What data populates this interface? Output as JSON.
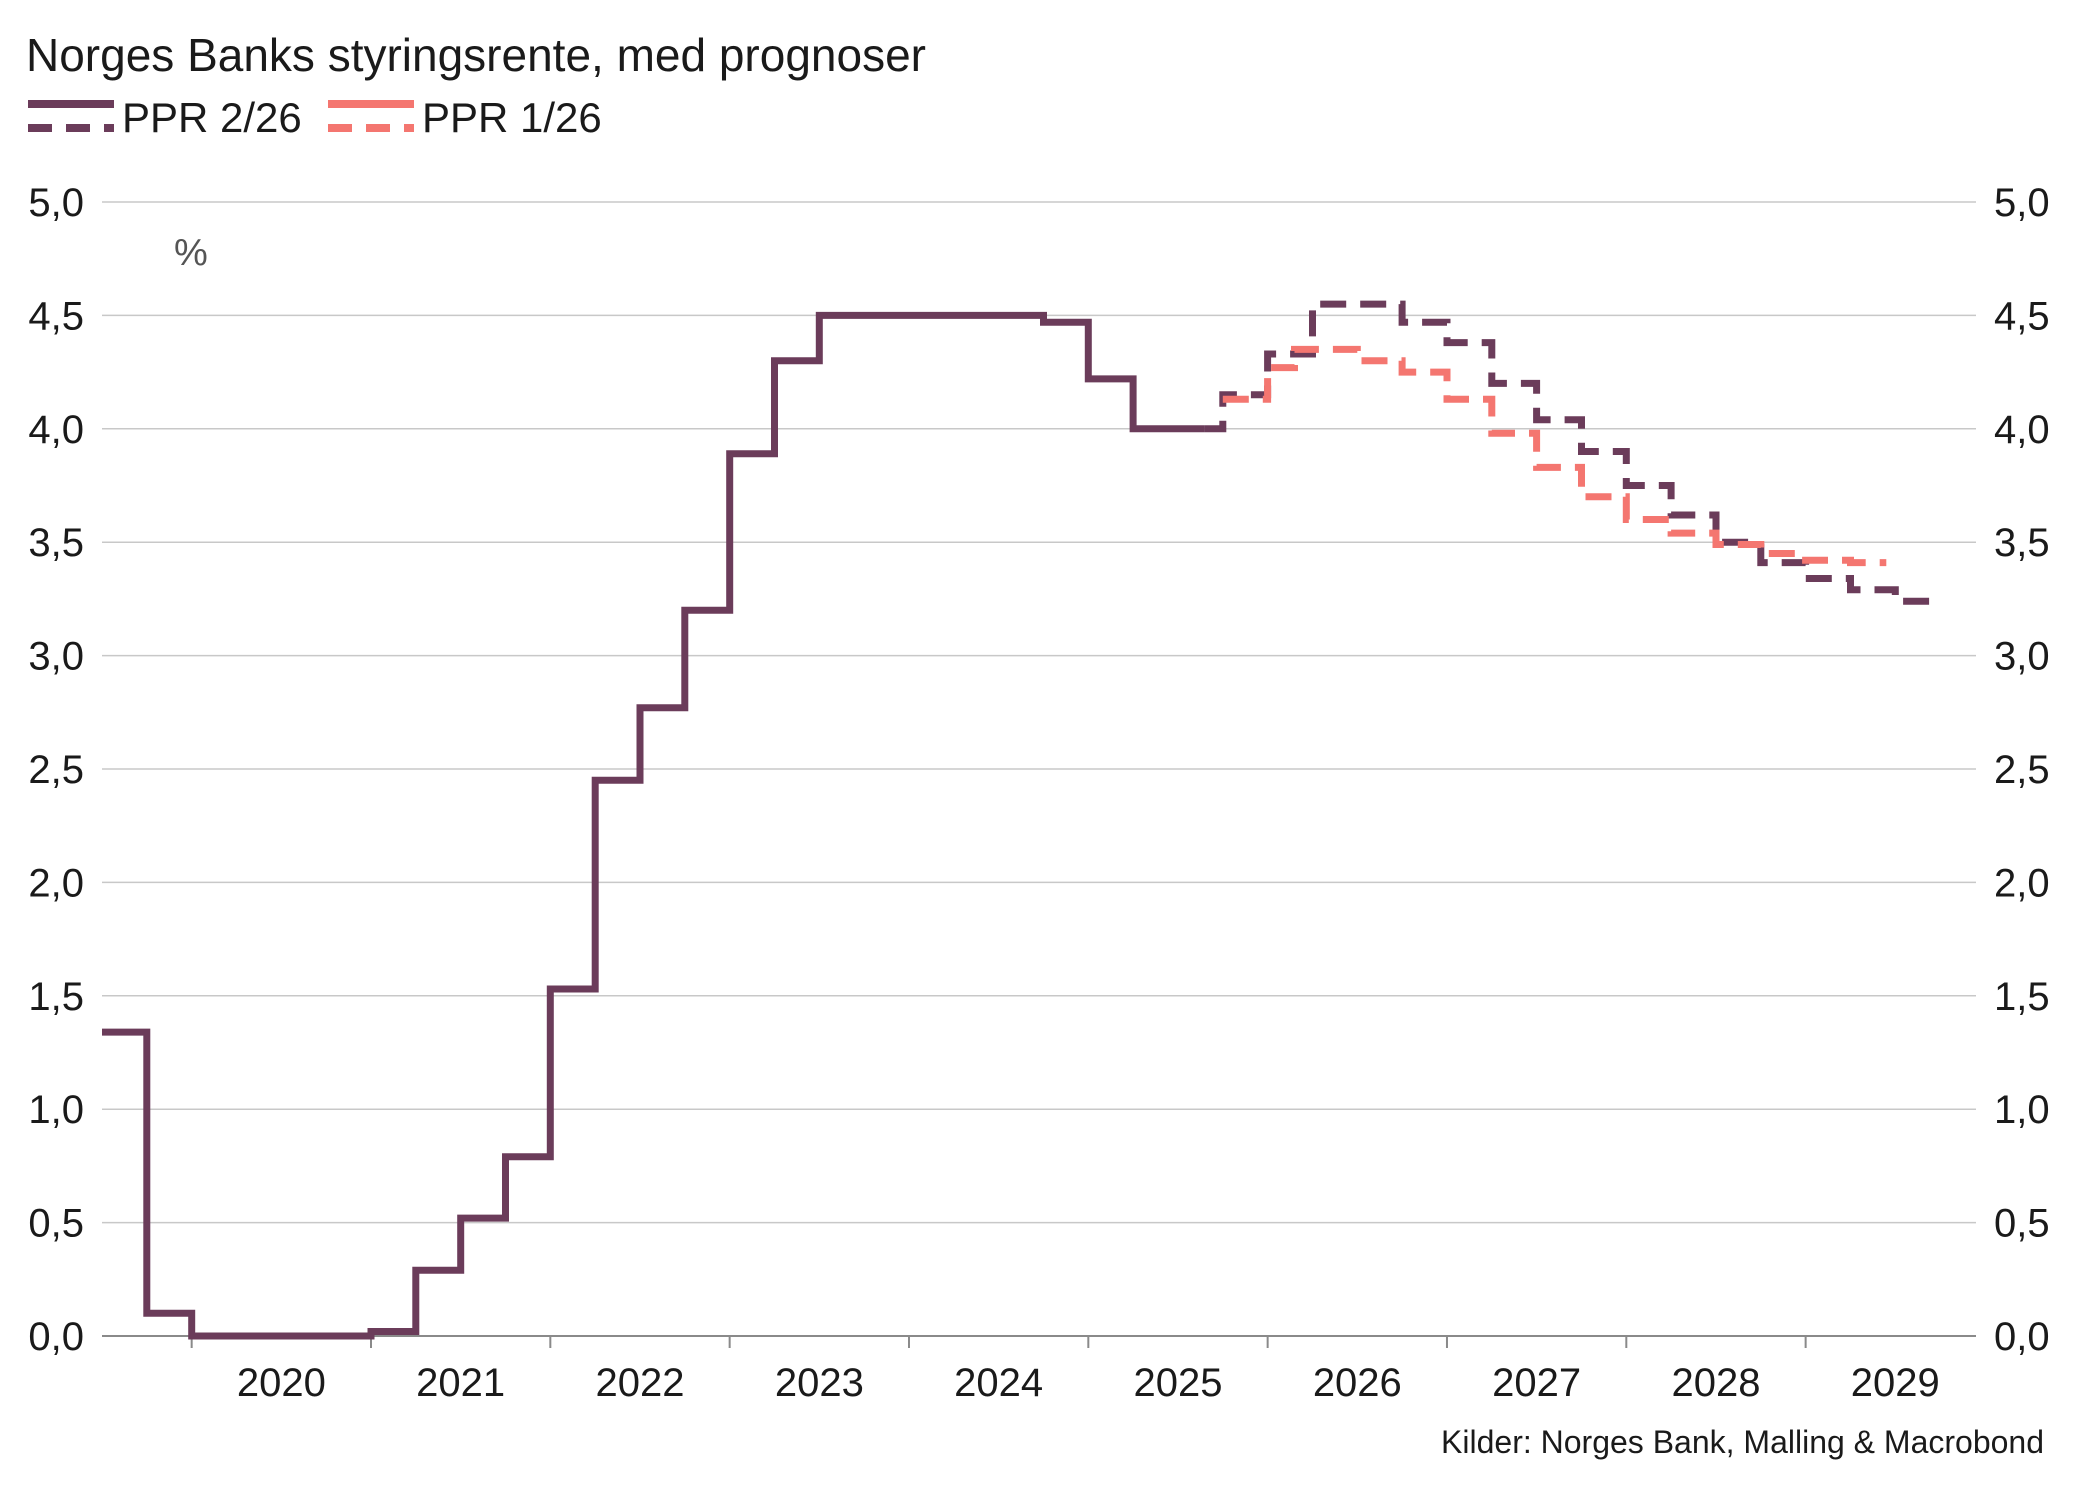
{
  "chart_data": {
    "type": "line",
    "title": "Norges Banks styringsrente, med prognoser",
    "unit_label": "%",
    "source": "Kilder: Norges Bank, Malling & Macrobond",
    "ylim": [
      0,
      5
    ],
    "xlim": [
      2019.5,
      2029.95
    ],
    "y_ticks": [
      0,
      0.5,
      1,
      1.5,
      2,
      2.5,
      3,
      3.5,
      4,
      4.5,
      5
    ],
    "y_tick_labels": [
      "0,0",
      "0,5",
      "1,0",
      "1,5",
      "2,0",
      "2,5",
      "3,0",
      "3,5",
      "4,0",
      "4,5",
      "5,0"
    ],
    "x_ticks": [
      2020,
      2021,
      2022,
      2023,
      2024,
      2025,
      2026,
      2027,
      2028,
      2029
    ],
    "x_tick_labels": [
      "2020",
      "2021",
      "2022",
      "2023",
      "2024",
      "2025",
      "2026",
      "2027",
      "2028",
      "2029"
    ],
    "grid": true,
    "legend_position": "top-left",
    "series": [
      {
        "name": "PPR 2/26",
        "color": "#6b3c5a",
        "style": "solid",
        "steps": [
          [
            2019.5,
            1.34
          ],
          [
            2019.75,
            0.1
          ],
          [
            2020.0,
            0.0
          ],
          [
            2021.0,
            0.02
          ],
          [
            2021.25,
            0.29
          ],
          [
            2021.5,
            0.52
          ],
          [
            2021.75,
            0.79
          ],
          [
            2022.0,
            1.53
          ],
          [
            2022.25,
            2.45
          ],
          [
            2022.5,
            2.77
          ],
          [
            2022.75,
            3.2
          ],
          [
            2023.0,
            3.89
          ],
          [
            2023.25,
            4.3
          ],
          [
            2023.5,
            4.5
          ],
          [
            2024.75,
            4.47
          ],
          [
            2025.0,
            4.22
          ],
          [
            2025.25,
            4.0
          ],
          [
            2025.65,
            4.0
          ]
        ]
      },
      {
        "name": "PPR 2/26",
        "color": "#6b3c5a",
        "style": "dashed",
        "steps": [
          [
            2025.65,
            4.0
          ],
          [
            2025.75,
            4.15
          ],
          [
            2026.0,
            4.33
          ],
          [
            2026.25,
            4.55
          ],
          [
            2026.75,
            4.47
          ],
          [
            2027.0,
            4.38
          ],
          [
            2027.25,
            4.2
          ],
          [
            2027.5,
            4.04
          ],
          [
            2027.75,
            3.9
          ],
          [
            2028.0,
            3.75
          ],
          [
            2028.25,
            3.62
          ],
          [
            2028.5,
            3.5
          ],
          [
            2028.75,
            3.41
          ],
          [
            2029.0,
            3.34
          ],
          [
            2029.25,
            3.29
          ],
          [
            2029.5,
            3.24
          ],
          [
            2029.7,
            3.24
          ]
        ]
      },
      {
        "name": "PPR 1/26",
        "color": "#f47670",
        "style": "dashed",
        "steps": [
          [
            2025.75,
            4.13
          ],
          [
            2026.0,
            4.27
          ],
          [
            2026.15,
            4.35
          ],
          [
            2026.5,
            4.3
          ],
          [
            2026.75,
            4.25
          ],
          [
            2027.0,
            4.13
          ],
          [
            2027.25,
            3.98
          ],
          [
            2027.5,
            3.83
          ],
          [
            2027.75,
            3.7
          ],
          [
            2028.0,
            3.6
          ],
          [
            2028.25,
            3.54
          ],
          [
            2028.5,
            3.49
          ],
          [
            2028.75,
            3.45
          ],
          [
            2029.0,
            3.42
          ],
          [
            2029.25,
            3.41
          ],
          [
            2029.45,
            3.41
          ]
        ]
      }
    ]
  },
  "legend": [
    {
      "label": "PPR 2/26",
      "color": "#6b3c5a"
    },
    {
      "label": "PPR 1/26",
      "color": "#f47670"
    }
  ]
}
